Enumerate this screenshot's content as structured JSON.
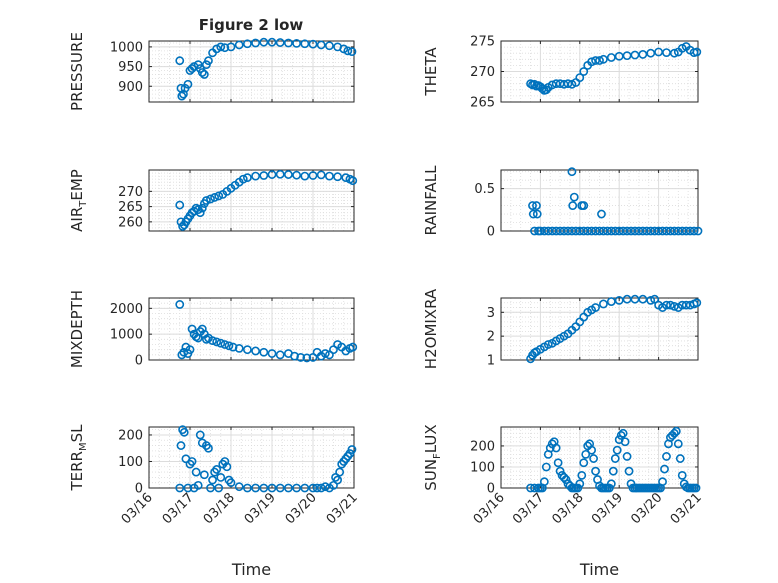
{
  "figure": {
    "title": "Figure 2 low"
  },
  "chart_data": [
    {
      "id": "pressure",
      "type": "scatter",
      "title": "Figure 2 low",
      "ylabel": {
        "main": "PRESSURE"
      },
      "xlabel": "",
      "xlim": [
        0,
        5
      ],
      "ylim": [
        860,
        1015
      ],
      "yticks": [
        900,
        950,
        1000
      ],
      "yticklabels": [
        "900",
        "950",
        "1000"
      ],
      "x": [
        0.75,
        0.78,
        0.8,
        0.84,
        0.88,
        0.95,
        1.0,
        1.05,
        1.1,
        1.2,
        1.25,
        1.3,
        1.35,
        1.4,
        1.45,
        1.55,
        1.65,
        1.75,
        1.85,
        2.0,
        2.2,
        2.4,
        2.6,
        2.8,
        3.0,
        3.2,
        3.4,
        3.6,
        3.8,
        4.0,
        4.2,
        4.4,
        4.6,
        4.75,
        4.85,
        4.95
      ],
      "values": [
        965,
        895,
        875,
        880,
        895,
        905,
        940,
        945,
        950,
        955,
        945,
        935,
        930,
        955,
        965,
        985,
        995,
        1000,
        998,
        1000,
        1005,
        1008,
        1010,
        1012,
        1012,
        1011,
        1010,
        1009,
        1008,
        1007,
        1005,
        1003,
        1000,
        995,
        990,
        988
      ]
    },
    {
      "id": "theta",
      "type": "scatter",
      "ylabel": {
        "main": "THETA"
      },
      "xlabel": "",
      "xlim": [
        0,
        5
      ],
      "ylim": [
        265,
        275
      ],
      "yticks": [
        265,
        270,
        275
      ],
      "yticklabels": [
        "265",
        "270",
        "275"
      ],
      "x": [
        0.75,
        0.8,
        0.85,
        0.9,
        0.95,
        1.0,
        1.05,
        1.1,
        1.15,
        1.2,
        1.3,
        1.4,
        1.5,
        1.6,
        1.7,
        1.8,
        1.9,
        2.0,
        2.1,
        2.2,
        2.3,
        2.4,
        2.5,
        2.6,
        2.8,
        3.0,
        3.2,
        3.4,
        3.6,
        3.8,
        4.0,
        4.2,
        4.4,
        4.5,
        4.6,
        4.7,
        4.8,
        4.9,
        4.97
      ],
      "values": [
        268.0,
        267.8,
        267.9,
        267.6,
        267.7,
        267.5,
        267.2,
        266.9,
        267.0,
        267.4,
        267.8,
        268.0,
        268.0,
        267.9,
        268.0,
        267.9,
        268.2,
        269.0,
        270.0,
        271.0,
        271.6,
        271.8,
        271.8,
        272.0,
        272.3,
        272.5,
        272.6,
        272.7,
        272.8,
        273.0,
        273.2,
        273.1,
        273.0,
        273.2,
        273.8,
        274.1,
        273.5,
        273.1,
        273.2
      ]
    },
    {
      "id": "air_temp",
      "type": "scatter",
      "ylabel": {
        "main": "AIR",
        "sub": "T",
        "rest": "EMP"
      },
      "xlabel": "",
      "xlim": [
        0,
        5
      ],
      "ylim": [
        257,
        277
      ],
      "yticks": [
        260,
        265,
        270
      ],
      "yticklabels": [
        "260",
        "265",
        "270"
      ],
      "x": [
        0.75,
        0.78,
        0.82,
        0.86,
        0.9,
        0.95,
        1.0,
        1.05,
        1.1,
        1.15,
        1.2,
        1.25,
        1.3,
        1.35,
        1.4,
        1.5,
        1.6,
        1.7,
        1.8,
        1.9,
        2.0,
        2.1,
        2.2,
        2.3,
        2.4,
        2.6,
        2.8,
        3.0,
        3.2,
        3.4,
        3.6,
        3.8,
        4.0,
        4.2,
        4.4,
        4.6,
        4.8,
        4.9,
        4.97
      ],
      "values": [
        265.5,
        260.0,
        258.5,
        259.0,
        260.0,
        261.0,
        262.0,
        263.0,
        263.5,
        264.5,
        264.0,
        263.0,
        264.5,
        266.0,
        267.0,
        267.5,
        268.0,
        268.5,
        269.0,
        270.0,
        271.0,
        272.0,
        273.0,
        274.0,
        274.5,
        275.0,
        275.2,
        275.5,
        275.6,
        275.5,
        275.3,
        275.0,
        275.2,
        275.4,
        275.0,
        274.8,
        274.5,
        274.0,
        273.5
      ]
    },
    {
      "id": "rainfall",
      "type": "scatter",
      "ylabel": {
        "main": "RAINFALL"
      },
      "xlabel": "",
      "xlim": [
        0,
        5
      ],
      "ylim": [
        0,
        0.72
      ],
      "yticks": [
        0,
        0.5
      ],
      "yticklabels": [
        "0",
        "0.5"
      ],
      "x": [
        0.8,
        0.85,
        0.9,
        0.95,
        1.0,
        1.1,
        1.2,
        1.3,
        1.4,
        1.5,
        1.6,
        1.7,
        1.8,
        1.9,
        2.0,
        2.1,
        2.2,
        2.3,
        2.4,
        2.5,
        2.6,
        2.7,
        2.8,
        2.9,
        3.0,
        3.1,
        3.2,
        3.3,
        3.4,
        3.5,
        3.6,
        3.7,
        3.8,
        3.9,
        4.0,
        4.1,
        4.2,
        4.3,
        4.4,
        4.5,
        4.6,
        4.7,
        4.8,
        4.9,
        5.0,
        0.82,
        0.92,
        1.82,
        1.86,
        2.05,
        2.1,
        2.55,
        1.8
      ],
      "values": [
        0.3,
        0,
        0.3,
        0,
        0,
        0,
        0,
        0,
        0,
        0,
        0,
        0,
        0,
        0,
        0,
        0,
        0,
        0,
        0,
        0,
        0,
        0,
        0,
        0,
        0,
        0,
        0,
        0,
        0,
        0,
        0,
        0,
        0,
        0,
        0,
        0,
        0,
        0,
        0,
        0,
        0,
        0,
        0,
        0,
        0,
        0.2,
        0.2,
        0.3,
        0.4,
        0.3,
        0.3,
        0.2,
        0.7
      ]
    },
    {
      "id": "mixdepth",
      "type": "scatter",
      "ylabel": {
        "main": "MIXDEPTH"
      },
      "xlabel": "",
      "xlim": [
        0,
        5
      ],
      "ylim": [
        0,
        2400
      ],
      "yticks": [
        0,
        1000,
        2000
      ],
      "yticklabels": [
        "0",
        "1000",
        "2000"
      ],
      "x": [
        0.75,
        0.8,
        0.85,
        0.9,
        0.95,
        1.0,
        1.05,
        1.1,
        1.15,
        1.2,
        1.25,
        1.3,
        1.35,
        1.4,
        1.45,
        1.55,
        1.65,
        1.75,
        1.85,
        1.95,
        2.05,
        2.2,
        2.4,
        2.6,
        2.8,
        3.0,
        3.2,
        3.4,
        3.55,
        3.7,
        3.85,
        4.0,
        4.1,
        4.2,
        4.3,
        4.4,
        4.5,
        4.6,
        4.7,
        4.8,
        4.9,
        4.97
      ],
      "values": [
        2150,
        200,
        300,
        500,
        250,
        400,
        1200,
        1000,
        900,
        850,
        1100,
        1200,
        1000,
        800,
        850,
        750,
        700,
        650,
        600,
        550,
        500,
        450,
        400,
        350,
        300,
        250,
        200,
        250,
        150,
        100,
        80,
        100,
        300,
        150,
        250,
        200,
        400,
        600,
        500,
        350,
        450,
        500
      ]
    },
    {
      "id": "h2omixra",
      "type": "scatter",
      "ylabel": {
        "main": "H2OMIXRA"
      },
      "xlabel": "",
      "xlim": [
        0,
        5
      ],
      "ylim": [
        1,
        3.6
      ],
      "yticks": [
        1,
        2,
        3
      ],
      "yticklabels": [
        "1",
        "2",
        "3"
      ],
      "x": [
        0.75,
        0.8,
        0.85,
        0.9,
        1.0,
        1.1,
        1.2,
        1.3,
        1.4,
        1.5,
        1.6,
        1.7,
        1.8,
        1.9,
        2.0,
        2.1,
        2.2,
        2.3,
        2.4,
        2.6,
        2.8,
        3.0,
        3.2,
        3.4,
        3.6,
        3.8,
        3.9,
        4.0,
        4.1,
        4.2,
        4.3,
        4.4,
        4.5,
        4.6,
        4.7,
        4.8,
        4.9,
        4.97
      ],
      "values": [
        1.05,
        1.2,
        1.3,
        1.35,
        1.45,
        1.55,
        1.65,
        1.7,
        1.8,
        1.9,
        2.0,
        2.1,
        2.25,
        2.4,
        2.6,
        2.8,
        3.0,
        3.1,
        3.2,
        3.35,
        3.45,
        3.5,
        3.55,
        3.55,
        3.55,
        3.5,
        3.55,
        3.3,
        3.2,
        3.3,
        3.3,
        3.25,
        3.2,
        3.3,
        3.3,
        3.3,
        3.35,
        3.4
      ]
    },
    {
      "id": "terr_msl",
      "type": "scatter",
      "ylabel": {
        "main": "TERR",
        "sub": "M",
        "rest": "SL"
      },
      "xlabel": "Time",
      "xlim": [
        0,
        5
      ],
      "ylim": [
        0,
        230
      ],
      "yticks": [
        0,
        100,
        200
      ],
      "yticklabels": [
        "0",
        "100",
        "200"
      ],
      "x": [
        0.75,
        0.78,
        0.82,
        0.86,
        0.9,
        0.95,
        1.0,
        1.05,
        1.1,
        1.15,
        1.2,
        1.25,
        1.3,
        1.35,
        1.4,
        1.45,
        1.5,
        1.55,
        1.6,
        1.65,
        1.7,
        1.75,
        1.8,
        1.85,
        1.9,
        1.95,
        2.0,
        2.2,
        2.4,
        2.6,
        2.8,
        3.0,
        3.2,
        3.4,
        3.6,
        3.8,
        4.0,
        4.1,
        4.2,
        4.3,
        4.4,
        4.5,
        4.55,
        4.6,
        4.65,
        4.7,
        4.75,
        4.8,
        4.85,
        4.9,
        4.95
      ],
      "values": [
        0,
        160,
        220,
        210,
        110,
        0,
        90,
        100,
        0,
        60,
        10,
        200,
        170,
        50,
        160,
        150,
        0,
        30,
        60,
        70,
        0,
        40,
        90,
        100,
        80,
        30,
        20,
        5,
        0,
        0,
        0,
        0,
        0,
        0,
        0,
        0,
        0,
        0,
        0,
        5,
        0,
        10,
        40,
        30,
        60,
        90,
        100,
        110,
        120,
        130,
        145
      ]
    },
    {
      "id": "sun_flux",
      "type": "scatter",
      "ylabel": {
        "main": "SUN",
        "sub": "F",
        "rest": "LUX"
      },
      "xlabel": "Time",
      "xlim": [
        0,
        5
      ],
      "ylim": [
        0,
        290
      ],
      "yticks": [
        0,
        100,
        200
      ],
      "yticklabels": [
        "0",
        "100",
        "200"
      ],
      "x": [
        0.75,
        0.85,
        0.95,
        1.0,
        1.05,
        1.1,
        1.15,
        1.2,
        1.25,
        1.3,
        1.35,
        1.4,
        1.45,
        1.5,
        1.55,
        1.6,
        1.65,
        1.7,
        1.75,
        1.8,
        1.85,
        1.9,
        1.95,
        2.0,
        2.05,
        2.1,
        2.15,
        2.2,
        2.25,
        2.3,
        2.35,
        2.4,
        2.45,
        2.5,
        2.55,
        2.6,
        2.65,
        2.7,
        2.75,
        2.8,
        2.85,
        2.9,
        2.95,
        3.0,
        3.05,
        3.1,
        3.15,
        3.2,
        3.25,
        3.3,
        3.35,
        3.4,
        3.45,
        3.5,
        3.55,
        3.6,
        3.65,
        3.7,
        3.75,
        3.8,
        3.85,
        3.9,
        3.95,
        4.0,
        4.05,
        4.1,
        4.15,
        4.2,
        4.25,
        4.3,
        4.35,
        4.4,
        4.45,
        4.5,
        4.55,
        4.6,
        4.65,
        4.7,
        4.75,
        4.8,
        4.85,
        4.9,
        4.95
      ],
      "values": [
        0,
        0,
        0,
        0,
        0,
        30,
        100,
        160,
        190,
        210,
        220,
        190,
        120,
        80,
        60,
        50,
        40,
        20,
        10,
        0,
        0,
        0,
        0,
        20,
        60,
        120,
        160,
        200,
        210,
        180,
        140,
        80,
        40,
        10,
        0,
        0,
        0,
        0,
        0,
        20,
        80,
        140,
        180,
        230,
        250,
        260,
        220,
        150,
        80,
        20,
        0,
        0,
        0,
        0,
        0,
        0,
        0,
        0,
        0,
        0,
        0,
        0,
        0,
        0,
        0,
        30,
        90,
        150,
        210,
        240,
        250,
        260,
        270,
        210,
        140,
        60,
        20,
        5,
        0,
        0,
        0,
        0,
        0
      ]
    }
  ],
  "x_axis": {
    "ticks": [
      0,
      1,
      2,
      3,
      4,
      5
    ],
    "ticklabels": [
      "03/16",
      "03/17",
      "03/18",
      "03/19",
      "03/20",
      "03/21"
    ],
    "label": "Time"
  }
}
